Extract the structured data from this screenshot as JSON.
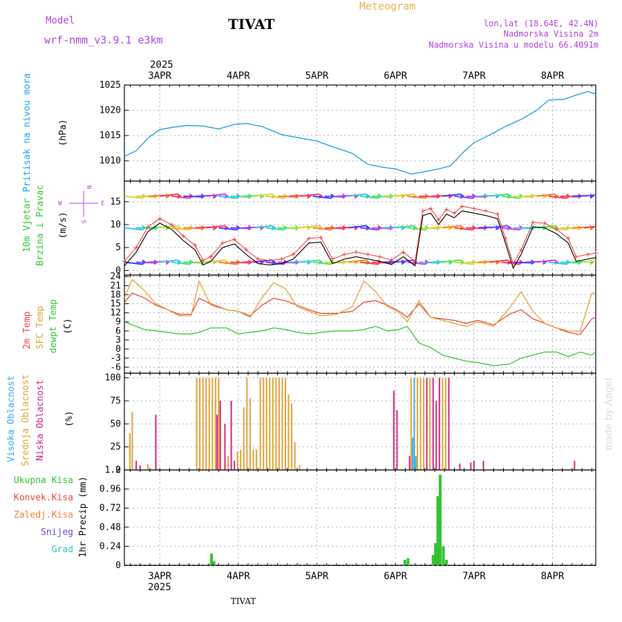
{
  "header": {
    "model_label": "Model",
    "model_name": "wrf-nmm_v3.9.1 e3km",
    "station_title": "TIVAT",
    "meteogram_label": "Meteogram",
    "lonlat": "lon,lat (18.64E, 42.4N)",
    "altitude": "Nadmorska Visina 2m",
    "model_altitude": "Nadmorska Visina u modelu 66.4091m",
    "year_top": "2025",
    "watermark": "made by Angel",
    "footer_station": "TIVAT",
    "year_bottom": "2025"
  },
  "colors": {
    "pressure": "#1ea0e6",
    "temp2m": "#e8453c",
    "sfc_temp": "#e0a030",
    "dewpt": "#2ec62e",
    "precip": "#33c233",
    "model_label": "#b040e0",
    "meteogram": "#e8b050",
    "high_cloud": "#30a8e8",
    "mid_cloud": "#e0a030",
    "low_cloud": "#d0207a"
  },
  "chart_data": [
    {
      "id": "pressure",
      "type": "line",
      "title": "Pritisak na nivou mora",
      "ylabel": "(hPa)",
      "xlim": [
        2.55,
        8.55
      ],
      "ylim": [
        1006,
        1025
      ],
      "yticks": [
        1010,
        1015,
        1020,
        1025
      ],
      "xticks": [
        "3APR",
        "4APR",
        "5APR",
        "6APR",
        "7APR",
        "8APR"
      ],
      "x": [
        2.55,
        2.7,
        2.85,
        3.0,
        3.15,
        3.35,
        3.55,
        3.75,
        3.95,
        4.1,
        4.3,
        4.55,
        4.75,
        5.0,
        5.2,
        5.45,
        5.65,
        5.85,
        6.0,
        6.2,
        6.35,
        6.55,
        6.7,
        6.85,
        7.0,
        7.2,
        7.4,
        7.6,
        7.8,
        7.95,
        8.15,
        8.3,
        8.45,
        8.55
      ],
      "values": [
        1010.9,
        1012.0,
        1014.5,
        1016.2,
        1016.6,
        1017.0,
        1016.9,
        1016.3,
        1017.2,
        1017.4,
        1016.8,
        1015.2,
        1014.6,
        1013.9,
        1012.8,
        1011.5,
        1009.3,
        1008.7,
        1008.4,
        1007.4,
        1007.8,
        1008.4,
        1009.0,
        1011.5,
        1013.6,
        1015.1,
        1016.8,
        1018.2,
        1020.0,
        1022.0,
        1022.2,
        1023.0,
        1023.7,
        1023.2
      ]
    },
    {
      "id": "wind",
      "type": "line",
      "title": "10m Vjetar",
      "subtitle": "Brzina i Pravac",
      "ylabel": "(m/s)",
      "compass": "N",
      "compass_w": "W",
      "compass_e": "E",
      "compass_s": "S",
      "xlim": [
        2.55,
        8.55
      ],
      "ylim": [
        -1,
        19.5
      ],
      "yticks": [
        0,
        5,
        10,
        15
      ],
      "x": [
        2.55,
        2.7,
        2.85,
        3.0,
        3.15,
        3.3,
        3.45,
        3.55,
        3.65,
        3.8,
        3.95,
        4.1,
        4.25,
        4.4,
        4.55,
        4.7,
        4.9,
        5.05,
        5.2,
        5.35,
        5.5,
        5.65,
        5.8,
        5.95,
        6.1,
        6.25,
        6.35,
        6.45,
        6.55,
        6.65,
        6.75,
        6.85,
        7.0,
        7.15,
        7.3,
        7.4,
        7.5,
        7.6,
        7.75,
        7.9,
        8.05,
        8.2,
        8.3,
        8.45,
        8.55
      ],
      "values": [
        1.0,
        4.0,
        8.5,
        10.3,
        9.0,
        6.5,
        4.5,
        1.2,
        2.0,
        5.0,
        5.8,
        3.5,
        1.5,
        1.2,
        1.5,
        2.5,
        6.0,
        6.2,
        1.5,
        2.5,
        3.0,
        2.5,
        2.0,
        1.3,
        3.0,
        1.0,
        12.0,
        12.5,
        10.0,
        12.3,
        11.5,
        13.0,
        12.5,
        12.0,
        11.3,
        6.0,
        0.5,
        3.5,
        9.5,
        9.3,
        8.0,
        6.0,
        2.0,
        2.5,
        2.8
      ],
      "barb_rows": [
        1.8,
        9.3,
        16.2
      ]
    },
    {
      "id": "temperature",
      "type": "line",
      "ylabel": "(C)",
      "series_labels": [
        "2m Temp",
        "SFC Temp",
        "dewpt Temp"
      ],
      "xlim": [
        2.55,
        8.55
      ],
      "ylim": [
        -8,
        24.5
      ],
      "yticks": [
        -6,
        -3,
        0,
        3,
        6,
        9,
        12,
        15,
        18,
        21,
        24
      ],
      "x": [
        2.55,
        2.65,
        2.8,
        2.95,
        3.1,
        3.25,
        3.4,
        3.5,
        3.65,
        3.85,
        4.0,
        4.15,
        4.3,
        4.45,
        4.6,
        4.75,
        4.9,
        5.05,
        5.25,
        5.45,
        5.6,
        5.75,
        5.9,
        6.05,
        6.15,
        6.3,
        6.45,
        6.6,
        6.75,
        6.9,
        7.05,
        7.25,
        7.45,
        7.6,
        7.75,
        7.9,
        8.05,
        8.2,
        8.35,
        8.5,
        8.55
      ],
      "series": [
        {
          "name": "2m Temp",
          "values": [
            15.5,
            18.5,
            17.0,
            14.5,
            13.0,
            11.5,
            11.5,
            16.8,
            15.0,
            13.0,
            12.5,
            11.0,
            14.5,
            16.8,
            16.0,
            14.5,
            13.0,
            11.8,
            11.8,
            12.5,
            15.5,
            16.0,
            14.5,
            12.5,
            10.5,
            15.0,
            10.5,
            10.0,
            9.5,
            8.5,
            9.5,
            8.0,
            11.5,
            13.0,
            10.0,
            8.5,
            7.0,
            5.5,
            4.8,
            10.0,
            10.5
          ]
        },
        {
          "name": "SFC Temp",
          "values": [
            17.0,
            23.0,
            19.5,
            15.0,
            13.0,
            11.0,
            11.0,
            22.5,
            14.5,
            13.0,
            12.5,
            10.5,
            17.0,
            22.0,
            20.0,
            14.0,
            12.5,
            11.0,
            11.5,
            14.0,
            22.5,
            19.0,
            14.0,
            12.0,
            9.0,
            16.0,
            10.5,
            9.5,
            8.5,
            7.5,
            9.0,
            7.5,
            13.5,
            19.0,
            12.5,
            8.5,
            7.0,
            6.0,
            5.8,
            18.5,
            18.5
          ]
        },
        {
          "name": "dewpt Temp",
          "values": [
            9.0,
            8.0,
            6.5,
            6.0,
            5.5,
            5.0,
            5.0,
            5.5,
            7.0,
            7.0,
            5.0,
            5.5,
            6.0,
            7.0,
            6.5,
            5.5,
            5.0,
            5.5,
            6.0,
            6.0,
            6.5,
            7.5,
            6.0,
            6.5,
            7.5,
            2.0,
            0.5,
            -2.0,
            -3.0,
            -4.0,
            -4.5,
            -5.5,
            -5.0,
            -3.0,
            -2.0,
            -1.0,
            -1.0,
            -2.5,
            -1.0,
            -2.0,
            -1.0
          ]
        }
      ]
    },
    {
      "id": "cloud",
      "type": "bar",
      "ylabel": "(%)",
      "series_labels": [
        "Visoka Oblacnost",
        "Srednja Oblacnost",
        "Niska Oblacnost"
      ],
      "xlim": [
        2.55,
        8.55
      ],
      "ylim": [
        0,
        105
      ],
      "yticks": [
        0,
        25,
        50,
        75,
        100
      ],
      "bars": [
        {
          "x": 2.62,
          "series": "mid",
          "value": 40
        },
        {
          "x": 2.65,
          "series": "mid",
          "value": 63
        },
        {
          "x": 2.7,
          "series": "low",
          "value": 10
        },
        {
          "x": 2.75,
          "series": "low",
          "value": 5
        },
        {
          "x": 2.85,
          "series": "mid",
          "value": 6
        },
        {
          "x": 2.95,
          "series": "low",
          "value": 60
        },
        {
          "x": 3.47,
          "series": "mid",
          "value": 100
        },
        {
          "x": 3.51,
          "series": "mid",
          "value": 100
        },
        {
          "x": 3.55,
          "series": "mid",
          "value": 100
        },
        {
          "x": 3.59,
          "series": "mid",
          "value": 100
        },
        {
          "x": 3.63,
          "series": "mid",
          "value": 100
        },
        {
          "x": 3.67,
          "series": "mid",
          "value": 100
        },
        {
          "x": 3.71,
          "series": "mid",
          "value": 100
        },
        {
          "x": 3.75,
          "series": "mid",
          "value": 100
        },
        {
          "x": 3.73,
          "series": "low",
          "value": 60
        },
        {
          "x": 3.77,
          "series": "low",
          "value": 75
        },
        {
          "x": 3.83,
          "series": "low",
          "value": 50
        },
        {
          "x": 3.87,
          "series": "mid",
          "value": 15
        },
        {
          "x": 3.91,
          "series": "low",
          "value": 75
        },
        {
          "x": 3.95,
          "series": "low",
          "value": 10
        },
        {
          "x": 3.99,
          "series": "mid",
          "value": 20
        },
        {
          "x": 4.03,
          "series": "mid",
          "value": 22
        },
        {
          "x": 4.07,
          "series": "mid",
          "value": 68
        },
        {
          "x": 4.11,
          "series": "mid",
          "value": 100
        },
        {
          "x": 4.15,
          "series": "mid",
          "value": 78
        },
        {
          "x": 4.19,
          "series": "mid",
          "value": 22
        },
        {
          "x": 4.23,
          "series": "mid",
          "value": 22
        },
        {
          "x": 4.28,
          "series": "mid",
          "value": 100
        },
        {
          "x": 4.32,
          "series": "mid",
          "value": 100
        },
        {
          "x": 4.36,
          "series": "mid",
          "value": 100
        },
        {
          "x": 4.4,
          "series": "mid",
          "value": 100
        },
        {
          "x": 4.44,
          "series": "mid",
          "value": 100
        },
        {
          "x": 4.48,
          "series": "mid",
          "value": 100
        },
        {
          "x": 4.52,
          "series": "mid",
          "value": 100
        },
        {
          "x": 4.56,
          "series": "mid",
          "value": 100
        },
        {
          "x": 4.6,
          "series": "mid",
          "value": 100
        },
        {
          "x": 4.64,
          "series": "mid",
          "value": 82
        },
        {
          "x": 4.68,
          "series": "mid",
          "value": 72
        },
        {
          "x": 4.72,
          "series": "mid",
          "value": 30
        },
        {
          "x": 4.78,
          "series": "mid",
          "value": 5
        },
        {
          "x": 5.98,
          "series": "low",
          "value": 86
        },
        {
          "x": 6.02,
          "series": "low",
          "value": 65
        },
        {
          "x": 6.18,
          "series": "low",
          "value": 15
        },
        {
          "x": 6.2,
          "series": "mid",
          "value": 100
        },
        {
          "x": 6.22,
          "series": "high",
          "value": 35
        },
        {
          "x": 6.24,
          "series": "high",
          "value": 100
        },
        {
          "x": 6.26,
          "series": "high",
          "value": 15
        },
        {
          "x": 6.28,
          "series": "mid",
          "value": 100
        },
        {
          "x": 6.32,
          "series": "mid",
          "value": 100
        },
        {
          "x": 6.36,
          "series": "mid",
          "value": 100
        },
        {
          "x": 6.4,
          "series": "low",
          "value": 100
        },
        {
          "x": 6.44,
          "series": "mid",
          "value": 100
        },
        {
          "x": 6.48,
          "series": "low",
          "value": 100
        },
        {
          "x": 6.52,
          "series": "low",
          "value": 75
        },
        {
          "x": 6.56,
          "series": "low",
          "value": 100
        },
        {
          "x": 6.6,
          "series": "mid",
          "value": 100
        },
        {
          "x": 6.64,
          "series": "mid",
          "value": 100
        },
        {
          "x": 6.68,
          "series": "low",
          "value": 100
        },
        {
          "x": 6.82,
          "series": "low",
          "value": 7
        },
        {
          "x": 6.96,
          "series": "low",
          "value": 8
        },
        {
          "x": 7.0,
          "series": "low",
          "value": 10
        },
        {
          "x": 7.12,
          "series": "low",
          "value": 10
        },
        {
          "x": 8.28,
          "series": "low",
          "value": 10
        }
      ]
    },
    {
      "id": "precip",
      "type": "bar",
      "ylabel": "1hr Precip (mm)",
      "series_labels": [
        "Ukupna Kisa",
        "Konvek.Kisa",
        "Zaledj.Kisa",
        "Snijeg",
        "Grad"
      ],
      "xlim": [
        2.55,
        8.55
      ],
      "ylim": [
        0,
        1.2
      ],
      "yticks": [
        0,
        0.24,
        0.48,
        0.72,
        0.96,
        1.2
      ],
      "xticks": [
        "3APR",
        "4APR",
        "5APR",
        "6APR",
        "7APR",
        "8APR"
      ],
      "bars": [
        {
          "x": 3.66,
          "value": 0.15
        },
        {
          "x": 3.69,
          "value": 0.05
        },
        {
          "x": 6.12,
          "value": 0.07
        },
        {
          "x": 6.16,
          "value": 0.09
        },
        {
          "x": 6.48,
          "value": 0.13
        },
        {
          "x": 6.51,
          "value": 0.28
        },
        {
          "x": 6.54,
          "value": 0.87
        },
        {
          "x": 6.57,
          "value": 1.14
        },
        {
          "x": 6.61,
          "value": 0.24
        },
        {
          "x": 6.65,
          "value": 0.07
        }
      ]
    }
  ]
}
